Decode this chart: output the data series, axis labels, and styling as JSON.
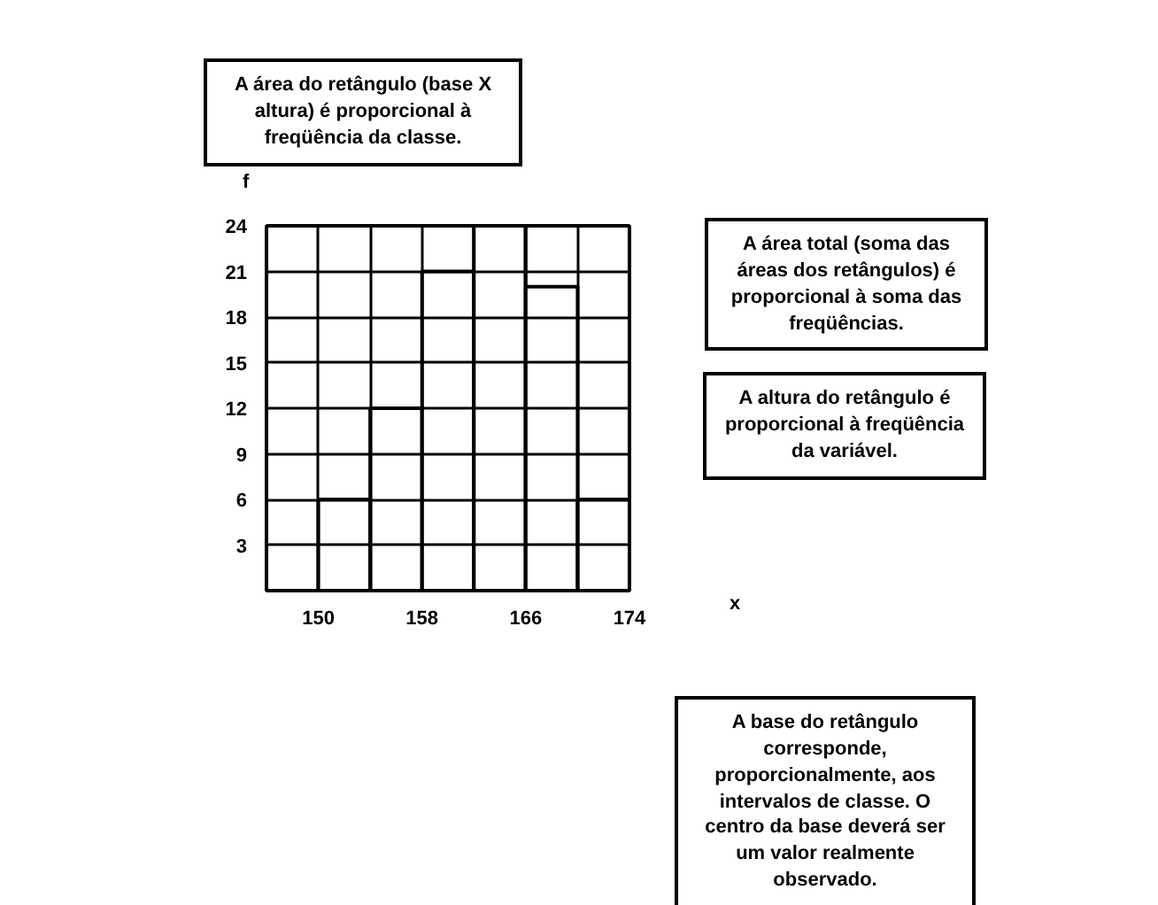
{
  "chart_data": {
    "type": "histogram",
    "xlabel": "x",
    "ylabel": "f",
    "bins": [
      150,
      154,
      158,
      162,
      166,
      170,
      174
    ],
    "values": [
      6,
      12,
      21,
      24,
      20,
      6
    ],
    "color": "#ffffff",
    "xlim": [
      146,
      174
    ],
    "ylim": [
      0,
      24
    ],
    "xticks": [
      {
        "value": 146,
        "label": null
      },
      150,
      {
        "value": 154,
        "label": null
      },
      158,
      {
        "value": 162,
        "label": null
      },
      166,
      {
        "value": 170,
        "label": null
      },
      174
    ],
    "yticks": [
      3,
      6,
      9,
      12,
      15,
      18,
      21,
      24
    ],
    "grid": true,
    "annotations": [
      "A área do retângulo (base X altura) é proporcional à freqüência da classe.",
      "A área total (soma das áreas dos retângulos) é proporcional à soma das freqüências.",
      "A altura do retângulo é proporcional à freqüência da variável.",
      "A base do retângulo corresponde, proporcionalmente, aos intervalos de classe. O centro da base deverá ser um valor realmente observado."
    ]
  }
}
